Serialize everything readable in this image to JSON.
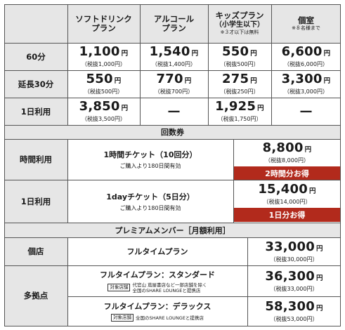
{
  "headers": {
    "soft_drink_line1": "ソフトドリンク",
    "soft_drink_line2": "プラン",
    "alcohol_line1": "アルコール",
    "alcohol_line2": "プラン",
    "kids_line1": "キッズプラン",
    "kids_line2": "（小学生以下）",
    "kids_note": "※３才以下は無料",
    "private_line1": "個室",
    "private_note": "※８名様まで"
  },
  "rows": [
    {
      "label": "60分",
      "cells": [
        {
          "price": "1,100",
          "unit": "円",
          "tax": "（税抜1,000円）"
        },
        {
          "price": "1,540",
          "unit": "円",
          "tax": "（税抜1,400円）"
        },
        {
          "price": "550",
          "unit": "円",
          "tax": "（税抜500円）"
        },
        {
          "price": "6,600",
          "unit": "円",
          "tax": "（税抜6,000円）"
        }
      ]
    },
    {
      "label": "延長30分",
      "cells": [
        {
          "price": "550",
          "unit": "円",
          "tax": "（税抜500円）"
        },
        {
          "price": "770",
          "unit": "円",
          "tax": "（税抜700円）"
        },
        {
          "price": "275",
          "unit": "円",
          "tax": "（税抜250円）"
        },
        {
          "price": "3,300",
          "unit": "円",
          "tax": "（税抜3,000円）"
        }
      ]
    },
    {
      "label": "1日利用",
      "cells": [
        {
          "price": "3,850",
          "unit": "円",
          "tax": "（税抜3,500円）"
        },
        {
          "dash": "—"
        },
        {
          "price": "1,925",
          "unit": "円",
          "tax": "（税抜1,750円）"
        },
        {
          "dash": "—"
        }
      ]
    }
  ],
  "coupon": {
    "title": "回数券",
    "rows": [
      {
        "label": "時間利用",
        "ticket": "1時間チケット（10回分）",
        "sub": "ご購入より180日間有効",
        "price": "8,800",
        "unit": "円",
        "tax": "（税抜8,000円）",
        "badge": "2時間分お得"
      },
      {
        "label": "1日利用",
        "ticket": "1dayチケット（5日分）",
        "sub": "ご購入より180日間有効",
        "price": "15,400",
        "unit": "円",
        "tax": "（税抜14,000円）",
        "badge": "1日分お得"
      }
    ]
  },
  "premium": {
    "title": "プレミアムメンバー［月額利用］",
    "single_label": "個店",
    "multi_label": "多拠点",
    "plans": [
      {
        "name": "フルタイムプラン",
        "price": "33,000",
        "unit": "円",
        "tax": "（税抜30,000円）"
      },
      {
        "name": "フルタイムプラン：スタンダード",
        "tag": "対象店舗",
        "tag_note1": "代官山 蔦屋書店など一部店舗を除く",
        "tag_note2": "全国のSHARE LOUNGEと提携店",
        "price": "36,300",
        "unit": "円",
        "tax": "（税抜33,000円）"
      },
      {
        "name": "フルタイムプラン：デラックス",
        "tag": "対象店舗",
        "tag_note1": "全国のSHARE LOUNGEと提携店",
        "price": "58,300",
        "unit": "円",
        "tax": "（税抜53,000円）"
      }
    ]
  }
}
